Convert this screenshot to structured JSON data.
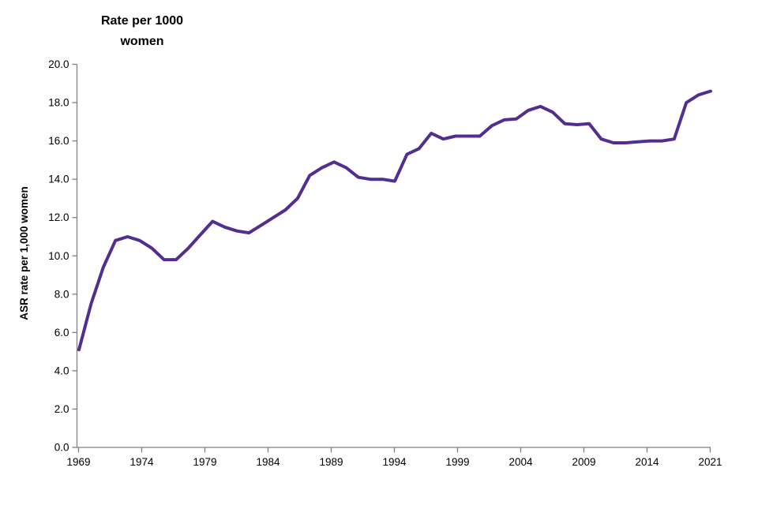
{
  "chart_data": {
    "type": "line",
    "title_lines": [
      "Rate per 1000",
      "women"
    ],
    "ylabel": "ASR rate per 1,000 women",
    "xlabel": "",
    "legend": "none",
    "grid": false,
    "ylim": [
      0,
      20
    ],
    "ytick_step": 2,
    "ytick_decimals": 1,
    "xtick_labels": [
      "1969",
      "1974",
      "1979",
      "1984",
      "1989",
      "1994",
      "1999",
      "2004",
      "2009",
      "2014",
      "2021"
    ],
    "years": [
      1969,
      1970,
      1971,
      1972,
      1973,
      1974,
      1975,
      1976,
      1977,
      1978,
      1979,
      1980,
      1981,
      1982,
      1983,
      1984,
      1985,
      1986,
      1987,
      1988,
      1989,
      1990,
      1991,
      1992,
      1993,
      1994,
      1995,
      1996,
      1997,
      1998,
      1999,
      2000,
      2001,
      2002,
      2003,
      2004,
      2005,
      2006,
      2007,
      2008,
      2009,
      2010,
      2011,
      2012,
      2013,
      2014,
      2015,
      2016,
      2017,
      2018,
      2019,
      2020,
      2021
    ],
    "values": [
      5.1,
      7.5,
      9.4,
      10.8,
      11.0,
      10.8,
      10.4,
      9.8,
      9.8,
      10.4,
      11.1,
      11.8,
      11.5,
      11.3,
      11.2,
      11.6,
      12.0,
      12.4,
      13.0,
      14.2,
      14.6,
      14.9,
      14.6,
      14.1,
      14.0,
      14.0,
      13.9,
      15.3,
      15.6,
      16.4,
      16.1,
      16.25,
      16.25,
      16.25,
      16.8,
      17.1,
      17.15,
      17.6,
      17.8,
      17.5,
      16.9,
      16.85,
      16.9,
      16.1,
      15.9,
      15.9,
      15.95,
      16.0,
      16.0,
      16.1,
      18.0,
      18.4,
      18.6
    ],
    "line_color": "#512e8f",
    "axis_color": "#808080",
    "tick_label_color": "#000000"
  }
}
